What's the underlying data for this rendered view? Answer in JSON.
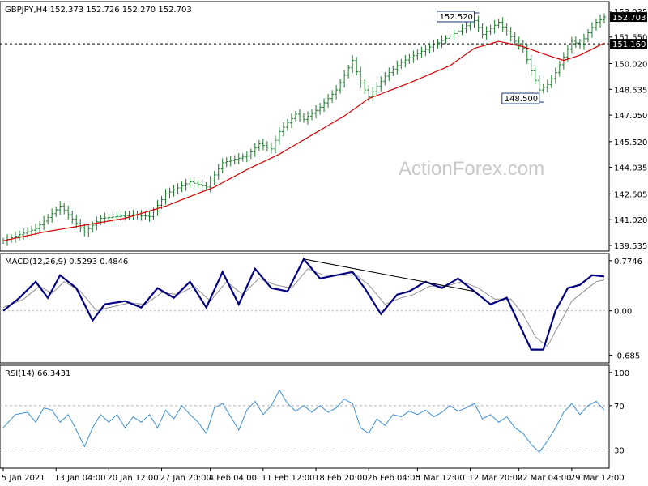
{
  "chart_data": [
    {
      "panel": "price",
      "type": "ohlc",
      "header": "GBPJPY,H4  152.373 152.726 152.270 152.703",
      "ylim": [
        139.3,
        153.5
      ],
      "yticks": [
        "153.035",
        "151.550",
        "150.020",
        "148.535",
        "147.050",
        "145.520",
        "144.035",
        "142.505",
        "141.020",
        "139.535"
      ],
      "last_price_label": "152.703",
      "hline_label": "151.160",
      "hline_value": 151.16,
      "annotations": [
        {
          "text": "152.520",
          "x_index": 116,
          "y": 152.52
        },
        {
          "text": "148.500",
          "x_index": 132,
          "y": 148.5
        }
      ],
      "watermark": "ActionForex.com",
      "close_keypoints": [
        [
          0,
          139.8
        ],
        [
          8,
          140.5
        ],
        [
          14,
          141.8
        ],
        [
          20,
          140.3
        ],
        [
          24,
          141.1
        ],
        [
          32,
          141.3
        ],
        [
          36,
          141.2
        ],
        [
          40,
          142.5
        ],
        [
          46,
          143.2
        ],
        [
          50,
          142.9
        ],
        [
          54,
          144.3
        ],
        [
          60,
          144.7
        ],
        [
          63,
          145.4
        ],
        [
          66,
          145.1
        ],
        [
          68,
          146.1
        ],
        [
          72,
          147.1
        ],
        [
          74,
          146.8
        ],
        [
          78,
          147.5
        ],
        [
          82,
          148.5
        ],
        [
          86,
          150.2
        ],
        [
          88,
          148.9
        ],
        [
          90,
          148.1
        ],
        [
          94,
          149.3
        ],
        [
          98,
          150.1
        ],
        [
          102,
          150.6
        ],
        [
          106,
          151.1
        ],
        [
          110,
          151.6
        ],
        [
          114,
          152.2
        ],
        [
          116,
          152.5
        ],
        [
          118,
          151.7
        ],
        [
          122,
          152.4
        ],
        [
          126,
          151.3
        ],
        [
          128,
          150.9
        ],
        [
          130,
          149.6
        ],
        [
          132,
          148.5
        ],
        [
          134,
          148.8
        ],
        [
          136,
          149.5
        ],
        [
          138,
          150.4
        ],
        [
          140,
          151.3
        ],
        [
          142,
          151.1
        ],
        [
          144,
          151.8
        ],
        [
          146,
          152.4
        ],
        [
          148,
          152.7
        ]
      ],
      "ma_keypoints": [
        [
          0,
          139.8
        ],
        [
          10,
          140.3
        ],
        [
          20,
          140.7
        ],
        [
          30,
          141.1
        ],
        [
          40,
          141.8
        ],
        [
          52,
          142.9
        ],
        [
          60,
          143.9
        ],
        [
          68,
          144.8
        ],
        [
          76,
          145.9
        ],
        [
          84,
          147.0
        ],
        [
          90,
          148.0
        ],
        [
          100,
          148.9
        ],
        [
          110,
          149.9
        ],
        [
          116,
          150.9
        ],
        [
          122,
          151.3
        ],
        [
          128,
          151.0
        ],
        [
          134,
          150.5
        ],
        [
          138,
          150.2
        ],
        [
          142,
          150.5
        ],
        [
          148,
          151.2
        ]
      ]
    },
    {
      "panel": "macd",
      "type": "line",
      "header": "MACD(12,26,9) 0.5293 0.4846",
      "ylim": [
        -0.78,
        0.86
      ],
      "yticks": [
        "0.7746",
        "0.00",
        "-0.685"
      ],
      "series": [
        {
          "name": "MACD",
          "keypoints": [
            [
              0,
              0.0
            ],
            [
              4,
              0.2
            ],
            [
              8,
              0.45
            ],
            [
              11,
              0.2
            ],
            [
              14,
              0.55
            ],
            [
              18,
              0.35
            ],
            [
              22,
              -0.15
            ],
            [
              25,
              0.1
            ],
            [
              30,
              0.15
            ],
            [
              34,
              0.05
            ],
            [
              38,
              0.35
            ],
            [
              42,
              0.2
            ],
            [
              46,
              0.45
            ],
            [
              50,
              0.05
            ],
            [
              54,
              0.6
            ],
            [
              58,
              0.1
            ],
            [
              62,
              0.65
            ],
            [
              66,
              0.35
            ],
            [
              70,
              0.3
            ],
            [
              74,
              0.8
            ],
            [
              78,
              0.5
            ],
            [
              82,
              0.55
            ],
            [
              86,
              0.6
            ],
            [
              89,
              0.35
            ],
            [
              93,
              -0.05
            ],
            [
              97,
              0.25
            ],
            [
              100,
              0.3
            ],
            [
              104,
              0.45
            ],
            [
              108,
              0.35
            ],
            [
              112,
              0.5
            ],
            [
              116,
              0.3
            ],
            [
              120,
              0.1
            ],
            [
              124,
              0.2
            ],
            [
              127,
              -0.2
            ],
            [
              130,
              -0.6
            ],
            [
              133,
              -0.6
            ],
            [
              136,
              0.0
            ],
            [
              139,
              0.35
            ],
            [
              142,
              0.4
            ],
            [
              145,
              0.55
            ],
            [
              148,
              0.53
            ]
          ]
        },
        {
          "name": "Signal",
          "keypoints": [
            [
              0,
              0.05
            ],
            [
              5,
              0.18
            ],
            [
              9,
              0.38
            ],
            [
              12,
              0.27
            ],
            [
              15,
              0.45
            ],
            [
              19,
              0.3
            ],
            [
              23,
              0.0
            ],
            [
              26,
              0.05
            ],
            [
              31,
              0.12
            ],
            [
              35,
              0.1
            ],
            [
              39,
              0.28
            ],
            [
              43,
              0.25
            ],
            [
              47,
              0.38
            ],
            [
              51,
              0.15
            ],
            [
              55,
              0.45
            ],
            [
              59,
              0.25
            ],
            [
              63,
              0.5
            ],
            [
              67,
              0.4
            ],
            [
              71,
              0.35
            ],
            [
              75,
              0.65
            ],
            [
              79,
              0.55
            ],
            [
              83,
              0.55
            ],
            [
              87,
              0.55
            ],
            [
              90,
              0.4
            ],
            [
              94,
              0.1
            ],
            [
              98,
              0.2
            ],
            [
              101,
              0.25
            ],
            [
              105,
              0.38
            ],
            [
              109,
              0.38
            ],
            [
              113,
              0.45
            ],
            [
              117,
              0.35
            ],
            [
              121,
              0.18
            ],
            [
              125,
              0.18
            ],
            [
              128,
              -0.05
            ],
            [
              131,
              -0.4
            ],
            [
              134,
              -0.55
            ],
            [
              137,
              -0.2
            ],
            [
              140,
              0.15
            ],
            [
              143,
              0.3
            ],
            [
              146,
              0.45
            ],
            [
              148,
              0.48
            ]
          ]
        }
      ],
      "trendline": [
        [
          74,
          0.8
        ],
        [
          116,
          0.3
        ]
      ]
    },
    {
      "panel": "rsi",
      "type": "line",
      "header": "RSI(14) 66.3431",
      "ylim": [
        15,
        105
      ],
      "yticks": [
        "100",
        "70",
        "30"
      ],
      "series": [
        {
          "name": "RSI",
          "keypoints": [
            [
              0,
              50
            ],
            [
              3,
              62
            ],
            [
              6,
              64
            ],
            [
              8,
              55
            ],
            [
              10,
              68
            ],
            [
              12,
              66
            ],
            [
              14,
              55
            ],
            [
              16,
              62
            ],
            [
              18,
              48
            ],
            [
              20,
              33
            ],
            [
              22,
              50
            ],
            [
              24,
              62
            ],
            [
              26,
              55
            ],
            [
              28,
              62
            ],
            [
              30,
              50
            ],
            [
              32,
              60
            ],
            [
              34,
              55
            ],
            [
              36,
              62
            ],
            [
              38,
              50
            ],
            [
              40,
              66
            ],
            [
              42,
              58
            ],
            [
              44,
              70
            ],
            [
              46,
              62
            ],
            [
              48,
              55
            ],
            [
              50,
              45
            ],
            [
              52,
              68
            ],
            [
              54,
              72
            ],
            [
              56,
              60
            ],
            [
              58,
              48
            ],
            [
              60,
              66
            ],
            [
              62,
              74
            ],
            [
              64,
              62
            ],
            [
              66,
              70
            ],
            [
              68,
              84
            ],
            [
              70,
              72
            ],
            [
              72,
              65
            ],
            [
              74,
              70
            ],
            [
              76,
              64
            ],
            [
              78,
              70
            ],
            [
              80,
              64
            ],
            [
              82,
              68
            ],
            [
              84,
              76
            ],
            [
              86,
              72
            ],
            [
              88,
              50
            ],
            [
              90,
              45
            ],
            [
              92,
              58
            ],
            [
              94,
              52
            ],
            [
              96,
              62
            ],
            [
              98,
              60
            ],
            [
              100,
              65
            ],
            [
              102,
              62
            ],
            [
              104,
              66
            ],
            [
              106,
              60
            ],
            [
              108,
              64
            ],
            [
              110,
              70
            ],
            [
              112,
              65
            ],
            [
              114,
              68
            ],
            [
              116,
              72
            ],
            [
              118,
              58
            ],
            [
              120,
              62
            ],
            [
              122,
              55
            ],
            [
              124,
              60
            ],
            [
              126,
              50
            ],
            [
              128,
              45
            ],
            [
              130,
              35
            ],
            [
              132,
              28
            ],
            [
              134,
              38
            ],
            [
              136,
              50
            ],
            [
              138,
              64
            ],
            [
              140,
              72
            ],
            [
              142,
              62
            ],
            [
              144,
              70
            ],
            [
              146,
              74
            ],
            [
              148,
              66
            ]
          ]
        }
      ],
      "levels": [
        70,
        30
      ]
    }
  ],
  "x_axis": {
    "labels": [
      "5 Jan 2021",
      "13 Jan 04:00",
      "20 Jan 12:00",
      "27 Jan 20:00",
      "4 Feb 04:00",
      "11 Feb 12:00",
      "18 Feb 20:00",
      "26 Feb 04:00",
      "5 Mar 12:00",
      "12 Mar 20:00",
      "22 Mar 04:00",
      "29 Mar 12:00"
    ],
    "label_indices": [
      0,
      13,
      26,
      39,
      51,
      64,
      77,
      90,
      102,
      115,
      127,
      140
    ],
    "n_bars": 149
  },
  "colors": {
    "price_bar": "#1a7a2a",
    "ma": "#d40000",
    "macd": "#000080",
    "signal": "#909090",
    "rsi": "#3a8fd6",
    "level": "#b0b0b0",
    "trendline": "#000000",
    "annotation_border": "#1a3a80"
  }
}
